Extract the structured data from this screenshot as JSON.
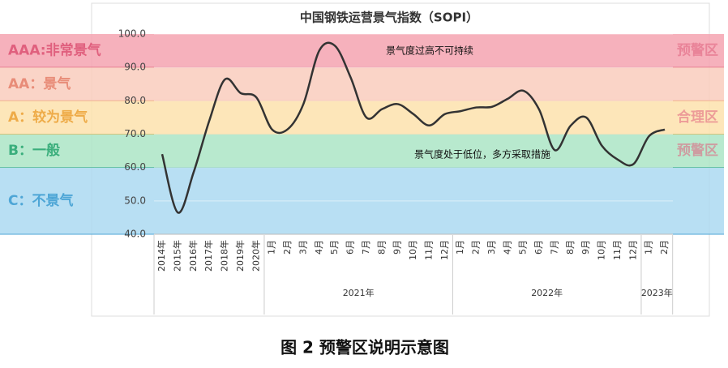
{
  "chart_data": {
    "type": "line",
    "title": "中国钢铁运营景气指数（SOPI）",
    "categories": [
      "2014年",
      "2015年",
      "2016年",
      "2017年",
      "2018年",
      "2019年",
      "2020年",
      "1月",
      "2月",
      "3月",
      "4月",
      "5月",
      "6月",
      "7月",
      "8月",
      "9月",
      "10月",
      "11月",
      "12月",
      "1月",
      "2月",
      "3月",
      "4月",
      "5月",
      "6月",
      "7月",
      "8月",
      "9月",
      "10月",
      "11月",
      "12月",
      "1月",
      "2月"
    ],
    "groups": [
      "2021年",
      "2022年",
      "2023年"
    ],
    "series": [
      {
        "color": "#333333",
        "values": [
          64,
          46.5,
          58.5,
          74,
          86.4,
          82.3,
          81,
          71.4,
          71.5,
          79.1,
          95,
          96.5,
          87,
          75,
          77.5,
          79,
          76,
          72.6,
          76,
          76.9,
          78,
          78.2,
          80.6,
          83,
          77.4,
          65.2,
          72.5,
          75,
          66.5,
          62.4,
          61,
          69.4,
          71.4
        ]
      }
    ],
    "ylim": [
      40,
      100
    ],
    "yticks": [
      {
        "value": 40,
        "label": "40.0"
      },
      {
        "value": 50,
        "label": "50.0"
      },
      {
        "value": 60,
        "label": "60.0"
      },
      {
        "value": 70,
        "label": "70.0"
      },
      {
        "value": 80,
        "label": "80.0"
      },
      {
        "value": 90,
        "label": "90.0"
      },
      {
        "value": 100,
        "label": "100.0"
      }
    ],
    "bands": [
      {
        "label": "AAA:非常景气",
        "range": [
          90,
          100
        ],
        "color": "#f4a3b0",
        "text_color": "#e0607e",
        "zone": "预警区"
      },
      {
        "label": "AA：景气",
        "range": [
          80,
          90
        ],
        "color": "#f9cdbd",
        "text_color": "#e88c78"
      },
      {
        "label": "A：较为景气",
        "range": [
          70,
          80
        ],
        "color": "#fde2ad",
        "text_color": "#eeab48",
        "zone": "合理区"
      },
      {
        "label": "B：一般",
        "range": [
          60,
          70
        ],
        "color": "#abe5c6",
        "text_color": "#3aae7c",
        "zone": "预警区"
      },
      {
        "label": "C：不景气",
        "range": [
          40,
          60
        ],
        "color": "#acd9f1",
        "text_color": "#4ea6d6"
      }
    ],
    "annotations": [
      "景气度过高不可持续",
      "景气度处于低位，多方采取措施"
    ],
    "caption": "图 2  预警区说明示意图"
  }
}
